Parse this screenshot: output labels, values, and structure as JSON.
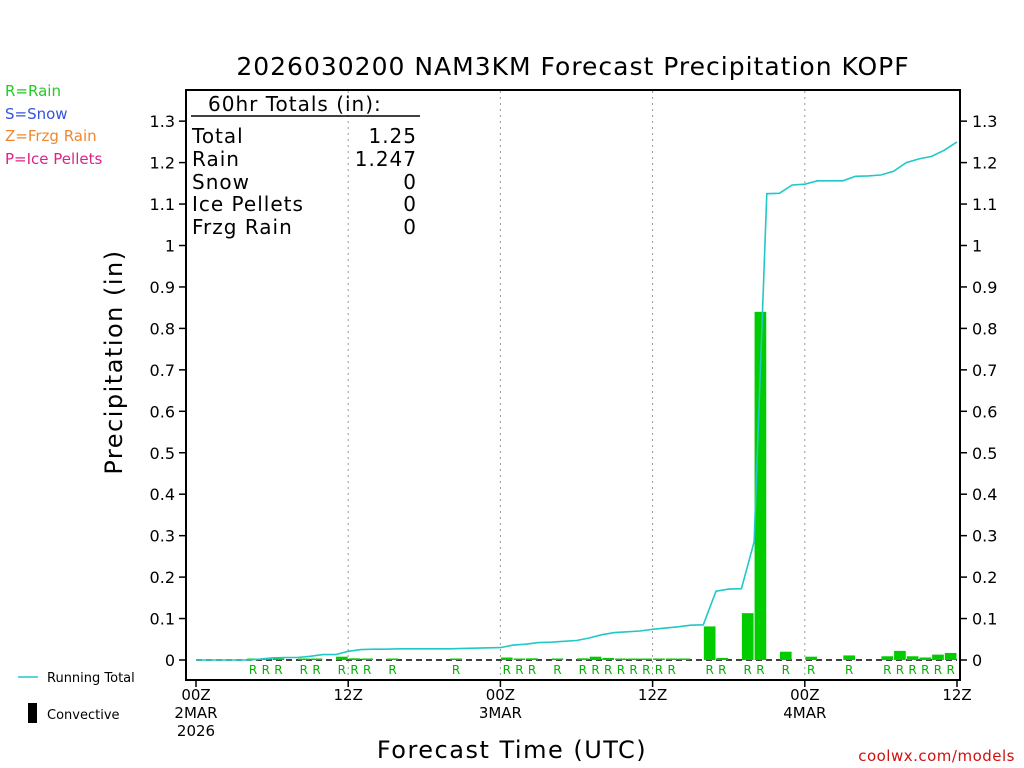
{
  "page": {
    "title": "2026030200 NAM3KM Forecast Precipitation KOPF",
    "credit": "coolwx.com/models"
  },
  "ptype_legend": [
    {
      "label": "R=Rain",
      "color": "#22cc22"
    },
    {
      "label": "S=Snow",
      "color": "#3355dd"
    },
    {
      "label": "Z=Frzg Rain",
      "color": "#ee8833"
    },
    {
      "label": "P=Ice Pellets",
      "color": "#dd2288"
    }
  ],
  "totals": {
    "header": "60hr Totals (in):",
    "rows": [
      {
        "label": "Total",
        "value": "1.25"
      },
      {
        "label": "Rain",
        "value": "1.247"
      },
      {
        "label": "Snow",
        "value": "0"
      },
      {
        "label": "Ice Pellets",
        "value": "0"
      },
      {
        "label": "Frzg Rain",
        "value": "0"
      }
    ]
  },
  "side_legend": {
    "running_total": "Running Total",
    "convective": "Convective"
  },
  "chart_data": {
    "type": "bar",
    "title": "2026030200 NAM3KM Forecast Precipitation KOPF",
    "xlabel": "Forecast Time (UTC)",
    "ylabel": "Precipitation (in)",
    "xlim": [
      0,
      60
    ],
    "ylim": [
      0,
      1.35
    ],
    "y_ticks": [
      "0",
      "0.1",
      "0.2",
      "0.3",
      "0.4",
      "0.5",
      "0.6",
      "0.7",
      "0.8",
      "0.9",
      "1",
      "1.1",
      "1.2",
      "1.3"
    ],
    "x_ticks": [
      {
        "hour": 0,
        "lines": [
          "00Z",
          "2MAR",
          "2026"
        ]
      },
      {
        "hour": 12,
        "lines": [
          "12Z"
        ]
      },
      {
        "hour": 24,
        "lines": [
          "00Z",
          "3MAR"
        ]
      },
      {
        "hour": 36,
        "lines": [
          "12Z"
        ]
      },
      {
        "hour": 48,
        "lines": [
          "00Z",
          "4MAR"
        ]
      },
      {
        "hour": 60,
        "lines": [
          "12Z"
        ]
      }
    ],
    "grid": "dashed vertical at 12Z and 00Z",
    "series": [
      {
        "name": "Hourly Precipitation (Rain)",
        "color": "#00cc00",
        "points": [
          {
            "hour": 5,
            "value": 0.002
          },
          {
            "hour": 6,
            "value": 0.003
          },
          {
            "hour": 7,
            "value": 0.002
          },
          {
            "hour": 9,
            "value": 0.002
          },
          {
            "hour": 10,
            "value": 0.003
          },
          {
            "hour": 12,
            "value": 0.008
          },
          {
            "hour": 13,
            "value": 0.004
          },
          {
            "hour": 14,
            "value": 0.002
          },
          {
            "hour": 16,
            "value": 0.001
          },
          {
            "hour": 21,
            "value": 0.001
          },
          {
            "hour": 25,
            "value": 0.006
          },
          {
            "hour": 26,
            "value": 0.002
          },
          {
            "hour": 27,
            "value": 0.004
          },
          {
            "hour": 29,
            "value": 0.002
          },
          {
            "hour": 31,
            "value": 0.004
          },
          {
            "hour": 32,
            "value": 0.008
          },
          {
            "hour": 33,
            "value": 0.005
          },
          {
            "hour": 34,
            "value": 0.002
          },
          {
            "hour": 35,
            "value": 0.001
          },
          {
            "hour": 36,
            "value": 0.002
          },
          {
            "hour": 37,
            "value": 0.002
          },
          {
            "hour": 38,
            "value": 0.001
          },
          {
            "hour": 39,
            "value": 0.003
          },
          {
            "hour": 41,
            "value": 0.081
          },
          {
            "hour": 42,
            "value": 0.005
          },
          {
            "hour": 44,
            "value": 0.113
          },
          {
            "hour": 45,
            "value": 0.84
          },
          {
            "hour": 47,
            "value": 0.02
          },
          {
            "hour": 49,
            "value": 0.008
          },
          {
            "hour": 52,
            "value": 0.011
          },
          {
            "hour": 55,
            "value": 0.009
          },
          {
            "hour": 56,
            "value": 0.022
          },
          {
            "hour": 57,
            "value": 0.009
          },
          {
            "hour": 58,
            "value": 0.006
          },
          {
            "hour": 59,
            "value": 0.013
          },
          {
            "hour": 60,
            "value": 0.017
          }
        ]
      },
      {
        "name": "Running Total",
        "color": "#20c8c8",
        "points": [
          {
            "hour": 0,
            "value": 0
          },
          {
            "hour": 4,
            "value": 0
          },
          {
            "hour": 5,
            "value": 0.002
          },
          {
            "hour": 6,
            "value": 0.005
          },
          {
            "hour": 7,
            "value": 0.006
          },
          {
            "hour": 8,
            "value": 0.006
          },
          {
            "hour": 9,
            "value": 0.009
          },
          {
            "hour": 10,
            "value": 0.013
          },
          {
            "hour": 11,
            "value": 0.013
          },
          {
            "hour": 12,
            "value": 0.021
          },
          {
            "hour": 13,
            "value": 0.025
          },
          {
            "hour": 14,
            "value": 0.026
          },
          {
            "hour": 15,
            "value": 0.026
          },
          {
            "hour": 16,
            "value": 0.027
          },
          {
            "hour": 20,
            "value": 0.027
          },
          {
            "hour": 21,
            "value": 0.028
          },
          {
            "hour": 24,
            "value": 0.03
          },
          {
            "hour": 25,
            "value": 0.036
          },
          {
            "hour": 26,
            "value": 0.038
          },
          {
            "hour": 27,
            "value": 0.042
          },
          {
            "hour": 28,
            "value": 0.043
          },
          {
            "hour": 29,
            "value": 0.045
          },
          {
            "hour": 30,
            "value": 0.047
          },
          {
            "hour": 31,
            "value": 0.053
          },
          {
            "hour": 32,
            "value": 0.061
          },
          {
            "hour": 33,
            "value": 0.066
          },
          {
            "hour": 34,
            "value": 0.068
          },
          {
            "hour": 35,
            "value": 0.07
          },
          {
            "hour": 36,
            "value": 0.074
          },
          {
            "hour": 37,
            "value": 0.077
          },
          {
            "hour": 38,
            "value": 0.08
          },
          {
            "hour": 39,
            "value": 0.084
          },
          {
            "hour": 40,
            "value": 0.085
          },
          {
            "hour": 41,
            "value": 0.166
          },
          {
            "hour": 42,
            "value": 0.171
          },
          {
            "hour": 43,
            "value": 0.172
          },
          {
            "hour": 44,
            "value": 0.285
          },
          {
            "hour": 45,
            "value": 1.125
          },
          {
            "hour": 46,
            "value": 1.126
          },
          {
            "hour": 47,
            "value": 1.146
          },
          {
            "hour": 48,
            "value": 1.148
          },
          {
            "hour": 49,
            "value": 1.156
          },
          {
            "hour": 50,
            "value": 1.156
          },
          {
            "hour": 51,
            "value": 1.156
          },
          {
            "hour": 52,
            "value": 1.167
          },
          {
            "hour": 53,
            "value": 1.168
          },
          {
            "hour": 54,
            "value": 1.17
          },
          {
            "hour": 55,
            "value": 1.179
          },
          {
            "hour": 56,
            "value": 1.2
          },
          {
            "hour": 57,
            "value": 1.209
          },
          {
            "hour": 58,
            "value": 1.215
          },
          {
            "hour": 59,
            "value": 1.23
          },
          {
            "hour": 60,
            "value": 1.25
          }
        ]
      }
    ],
    "ptype_markers": [
      {
        "hour": 5,
        "label": "R"
      },
      {
        "hour": 6,
        "label": "R"
      },
      {
        "hour": 7,
        "label": "R"
      },
      {
        "hour": 9,
        "label": "R"
      },
      {
        "hour": 10,
        "label": "R"
      },
      {
        "hour": 12,
        "label": "R"
      },
      {
        "hour": 13,
        "label": "R"
      },
      {
        "hour": 14,
        "label": "R"
      },
      {
        "hour": 16,
        "label": "R"
      },
      {
        "hour": 21,
        "label": "R"
      },
      {
        "hour": 25,
        "label": "R"
      },
      {
        "hour": 26,
        "label": "R"
      },
      {
        "hour": 27,
        "label": "R"
      },
      {
        "hour": 29,
        "label": "R"
      },
      {
        "hour": 31,
        "label": "R"
      },
      {
        "hour": 32,
        "label": "R"
      },
      {
        "hour": 33,
        "label": "R"
      },
      {
        "hour": 34,
        "label": "R"
      },
      {
        "hour": 35,
        "label": "R"
      },
      {
        "hour": 36,
        "label": "R"
      },
      {
        "hour": 37,
        "label": "R"
      },
      {
        "hour": 38,
        "label": "R"
      },
      {
        "hour": 41,
        "label": "R"
      },
      {
        "hour": 42,
        "label": "R"
      },
      {
        "hour": 44,
        "label": "R"
      },
      {
        "hour": 45,
        "label": "R"
      },
      {
        "hour": 47,
        "label": "R"
      },
      {
        "hour": 49,
        "label": "R"
      },
      {
        "hour": 52,
        "label": "R"
      },
      {
        "hour": 55,
        "label": "R"
      },
      {
        "hour": 56,
        "label": "R"
      },
      {
        "hour": 57,
        "label": "R"
      },
      {
        "hour": 58,
        "label": "R"
      },
      {
        "hour": 59,
        "label": "R"
      },
      {
        "hour": 60,
        "label": "R"
      }
    ]
  }
}
